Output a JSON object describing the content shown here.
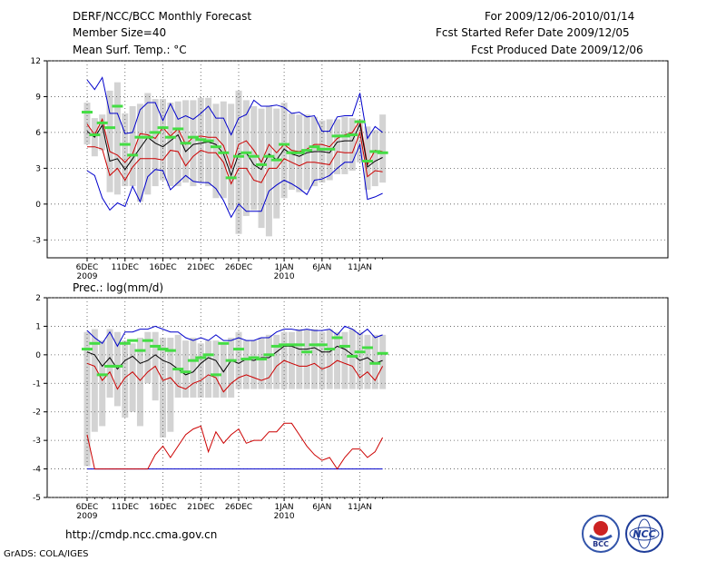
{
  "header": {
    "title": "DERF/NCC/BCC Monthly Forecast",
    "member_size": "Member Size=40",
    "variable": "Mean Surf. Temp.: °C",
    "period": "For 2009/12/06-2010/01/14",
    "started": "Fcst Started Refer Date 2009/12/05",
    "produced": "Fcst Produced Date 2009/12/06"
  },
  "footer": {
    "url": "http://cmdp.ncc.cma.gov.cn",
    "credit": "GrADS: COLA/IGES",
    "logo_left": "BCC",
    "logo_right": "NCC"
  },
  "colors": {
    "box": "#d3d3d3",
    "obs": "#44dd44",
    "ens_mean": "#000000",
    "quartile": "#cc0000",
    "envelope": "#0000cc",
    "grid": "#555555"
  },
  "chart_data": [
    {
      "type": "line",
      "title": "Mean Surf. Temp.: °C",
      "ylim": [
        -4.5,
        12
      ],
      "yticks": [
        12,
        9,
        6,
        3,
        0,
        -3
      ],
      "xticks": [
        {
          "day": 0,
          "label": "6DEC",
          "label2": "2009"
        },
        {
          "day": 5,
          "label": "11DEC"
        },
        {
          "day": 10,
          "label": "16DEC"
        },
        {
          "day": 15,
          "label": "21DEC"
        },
        {
          "day": 20,
          "label": "26DEC"
        },
        {
          "day": 26,
          "label": "1JAN",
          "label2": "2010"
        },
        {
          "day": 31,
          "label": "6JAN"
        },
        {
          "day": 36,
          "label": "11JAN"
        }
      ],
      "x": [
        0,
        1,
        2,
        3,
        4,
        5,
        6,
        7,
        8,
        9,
        10,
        11,
        12,
        13,
        14,
        15,
        16,
        17,
        18,
        19,
        20,
        21,
        22,
        23,
        24,
        25,
        26,
        27,
        28,
        29,
        30,
        31,
        32,
        33,
        34,
        35,
        36,
        37,
        38,
        39
      ],
      "series": [
        {
          "name": "box_max",
          "values": [
            8.5,
            7.2,
            7.5,
            9.5,
            10.2,
            7.6,
            8.2,
            8.4,
            9.3,
            8.8,
            8.8,
            8.5,
            8.6,
            8.7,
            8.7,
            8.9,
            8.9,
            8.4,
            8.6,
            8.4,
            9.5,
            8.7,
            8.2,
            8.0,
            8.2,
            8.0,
            8.5,
            7.6,
            7.5,
            7.5,
            7.3,
            7.0,
            7.1,
            7.1,
            7.3,
            7.2,
            7.1,
            6.5,
            6.2,
            7.5
          ]
        },
        {
          "name": "box_min",
          "values": [
            5.0,
            4.0,
            4.5,
            1.0,
            0.8,
            1.5,
            1.5,
            0.2,
            0.8,
            1.5,
            2.0,
            1.5,
            1.5,
            1.8,
            1.5,
            1.8,
            1.5,
            0.5,
            0.5,
            -0.5,
            -2.5,
            -1.0,
            -0.5,
            -2.0,
            -2.7,
            -1.2,
            0.5,
            1.2,
            1.0,
            1.2,
            1.5,
            1.8,
            2.0,
            2.5,
            2.5,
            2.8,
            3.5,
            1.2,
            1.5,
            1.8
          ]
        },
        {
          "name": "upper_envelope",
          "values": [
            10.4,
            9.6,
            10.6,
            7.6,
            7.6,
            5.9,
            6.0,
            7.9,
            8.5,
            8.5,
            7.0,
            8.4,
            7.1,
            7.4,
            7.1,
            7.6,
            8.2,
            7.2,
            7.2,
            5.8,
            7.2,
            7.5,
            8.7,
            8.2,
            8.2,
            8.3,
            8.1,
            7.6,
            7.7,
            7.3,
            7.4,
            6.1,
            6.1,
            7.3,
            7.4,
            7.4,
            9.3,
            5.5,
            6.5,
            6.0
          ]
        },
        {
          "name": "upper_quartile",
          "values": [
            6.7,
            5.8,
            7.1,
            4.4,
            4.1,
            3.5,
            4.2,
            5.9,
            5.8,
            5.5,
            6.4,
            5.7,
            6.3,
            5.0,
            5.6,
            5.7,
            5.6,
            5.6,
            4.9,
            3.0,
            5.0,
            5.3,
            4.5,
            3.5,
            5.0,
            4.3,
            5.0,
            4.5,
            4.4,
            4.6,
            5.0,
            5.0,
            4.8,
            5.5,
            5.8,
            6.0,
            7.0,
            3.3,
            4.5,
            4.4
          ]
        },
        {
          "name": "ensemble_mean",
          "values": [
            6.1,
            5.6,
            6.6,
            3.6,
            3.8,
            2.9,
            3.8,
            4.7,
            5.6,
            5.1,
            4.8,
            5.3,
            5.8,
            4.4,
            5.0,
            5.1,
            5.2,
            5.0,
            4.2,
            2.4,
            4.2,
            4.3,
            3.3,
            2.9,
            4.2,
            3.7,
            4.6,
            4.2,
            4.0,
            4.3,
            4.4,
            4.4,
            4.3,
            5.2,
            5.3,
            5.3,
            6.7,
            3.1,
            3.6,
            3.9
          ]
        },
        {
          "name": "lower_quartile",
          "values": [
            4.8,
            4.8,
            4.6,
            2.4,
            3.0,
            2.0,
            3.1,
            3.8,
            3.8,
            3.8,
            3.7,
            4.5,
            4.4,
            3.2,
            4.0,
            4.5,
            4.3,
            4.3,
            3.5,
            1.7,
            3.0,
            3.0,
            2.0,
            1.8,
            3.0,
            3.0,
            3.8,
            3.5,
            3.2,
            3.5,
            3.5,
            3.4,
            3.3,
            4.4,
            4.3,
            4.3,
            6.0,
            2.3,
            2.8,
            2.7
          ]
        },
        {
          "name": "lower_envelope",
          "values": [
            2.8,
            2.4,
            0.5,
            -0.5,
            0.1,
            -0.2,
            1.5,
            0.2,
            2.3,
            2.9,
            2.8,
            1.2,
            1.8,
            2.4,
            1.9,
            1.8,
            1.8,
            1.3,
            0.3,
            -1.1,
            0.0,
            -0.6,
            -0.6,
            -0.6,
            1.1,
            1.6,
            2.0,
            1.7,
            1.3,
            0.8,
            2.0,
            2.1,
            2.4,
            3.0,
            3.5,
            3.5,
            5.0,
            0.4,
            0.6,
            0.9
          ]
        },
        {
          "name": "observed",
          "values": [
            7.7,
            5.8,
            6.8,
            6.4,
            8.2,
            5.0,
            4.1,
            5.6,
            5.6,
            6.0,
            6.4,
            5.6,
            6.3,
            5.1,
            5.6,
            5.4,
            5.3,
            4.8,
            4.3,
            2.2,
            4.0,
            4.3,
            4.0,
            3.3,
            4.0,
            3.7,
            5.0,
            4.3,
            4.3,
            4.5,
            4.8,
            4.6,
            4.6,
            5.7,
            5.7,
            5.8,
            6.9,
            3.6,
            4.4,
            4.3
          ]
        }
      ]
    },
    {
      "type": "line",
      "title": "Prec.: log(mm/d)",
      "ylim": [
        -5,
        2
      ],
      "yticks": [
        2,
        1,
        0,
        -1,
        -2,
        -3,
        -4,
        -5
      ],
      "xticks": [
        {
          "day": 0,
          "label": "6DEC",
          "label2": "2009"
        },
        {
          "day": 5,
          "label": "11DEC"
        },
        {
          "day": 10,
          "label": "16DEC"
        },
        {
          "day": 15,
          "label": "21DEC"
        },
        {
          "day": 20,
          "label": "26DEC"
        },
        {
          "day": 26,
          "label": "1JAN",
          "label2": "2010"
        },
        {
          "day": 31,
          "label": "6JAN"
        },
        {
          "day": 36,
          "label": "11JAN"
        }
      ],
      "x": [
        0,
        1,
        2,
        3,
        4,
        5,
        6,
        7,
        8,
        9,
        10,
        11,
        12,
        13,
        14,
        15,
        16,
        17,
        18,
        19,
        20,
        21,
        22,
        23,
        24,
        25,
        26,
        27,
        28,
        29,
        30,
        31,
        32,
        33,
        34,
        35,
        36,
        37,
        38,
        39
      ],
      "series": [
        {
          "name": "box_max",
          "values": [
            0.8,
            0.9,
            0.5,
            0.9,
            0.8,
            0.5,
            0.4,
            0.6,
            0.8,
            0.8,
            0.6,
            0.6,
            0.7,
            0.5,
            0.6,
            0.4,
            0.5,
            0.5,
            0.4,
            0.6,
            0.8,
            0.5,
            0.5,
            0.6,
            0.7,
            0.7,
            0.8,
            0.8,
            0.9,
            0.9,
            0.9,
            0.8,
            0.9,
            0.8,
            0.8,
            0.9,
            0.8,
            0.7,
            0.7,
            0.7
          ]
        },
        {
          "name": "box_min",
          "values": [
            -3.9,
            -2.7,
            -2.5,
            -1.5,
            -1.8,
            -2.2,
            -2.0,
            -2.5,
            -1.0,
            -1.6,
            -2.9,
            -2.7,
            -1.5,
            -1.5,
            -1.5,
            -1.5,
            -1.5,
            -1.5,
            -1.5,
            -1.5,
            -1.2,
            -1.2,
            -1.2,
            -1.2,
            -1.2,
            -1.2,
            -1.2,
            -1.2,
            -1.2,
            -1.2,
            -1.2,
            -1.2,
            -1.2,
            -1.2,
            -1.2,
            -1.2,
            -1.2,
            -1.2,
            -1.2,
            -1.2
          ]
        },
        {
          "name": "upper_envelope",
          "values": [
            0.85,
            0.6,
            0.4,
            0.8,
            0.3,
            0.8,
            0.8,
            0.9,
            0.9,
            1.0,
            0.9,
            0.8,
            0.8,
            0.6,
            0.5,
            0.6,
            0.5,
            0.7,
            0.5,
            0.5,
            0.6,
            0.5,
            0.5,
            0.6,
            0.6,
            0.8,
            0.9,
            0.9,
            0.85,
            0.9,
            0.85,
            0.85,
            0.9,
            0.7,
            1.0,
            0.9,
            0.7,
            0.9,
            0.6,
            0.7
          ]
        },
        {
          "name": "ensemble_mean",
          "values": [
            0.1,
            0.0,
            -0.4,
            -0.1,
            -0.5,
            -0.2,
            -0.05,
            -0.3,
            -0.2,
            0.0,
            -0.2,
            -0.3,
            -0.5,
            -0.7,
            -0.6,
            -0.3,
            -0.1,
            -0.2,
            -0.6,
            -0.2,
            -0.3,
            -0.15,
            -0.2,
            -0.1,
            -0.1,
            0.1,
            0.3,
            0.3,
            0.2,
            0.2,
            0.25,
            0.1,
            0.1,
            0.3,
            0.2,
            0.0,
            -0.2,
            -0.1,
            -0.3,
            -0.2
          ]
        },
        {
          "name": "upper_red",
          "values": [
            -0.3,
            -0.4,
            -0.9,
            -0.6,
            -1.2,
            -0.8,
            -0.6,
            -0.9,
            -0.6,
            -0.4,
            -0.9,
            -0.8,
            -1.1,
            -1.2,
            -1.0,
            -0.9,
            -0.7,
            -0.8,
            -1.3,
            -1.0,
            -0.8,
            -0.7,
            -0.8,
            -0.9,
            -0.8,
            -0.4,
            -0.2,
            -0.3,
            -0.4,
            -0.4,
            -0.3,
            -0.5,
            -0.4,
            -0.2,
            -0.3,
            -0.4,
            -0.8,
            -0.6,
            -0.9,
            -0.4
          ]
        },
        {
          "name": "lower_red",
          "values": [
            -2.8,
            -4.0,
            -4.0,
            -4.0,
            -4.0,
            -4.0,
            -4.0,
            -4.0,
            -4.0,
            -3.5,
            -3.2,
            -3.6,
            -3.2,
            -2.8,
            -2.6,
            -2.5,
            -3.4,
            -2.7,
            -3.1,
            -2.8,
            -2.6,
            -3.1,
            -3.0,
            -3.0,
            -2.7,
            -2.7,
            -2.4,
            -2.4,
            -2.8,
            -3.2,
            -3.5,
            -3.7,
            -3.6,
            -4.0,
            -3.6,
            -3.3,
            -3.3,
            -3.6,
            -3.4,
            -2.9
          ]
        },
        {
          "name": "lower_envelope",
          "values": [
            -4.0,
            -4.0,
            -4.0,
            -4.0,
            -4.0,
            -4.0,
            -4.0,
            -4.0,
            -4.0,
            -4.0,
            -4.0,
            -4.0,
            -4.0,
            -4.0,
            -4.0,
            -4.0,
            -4.0,
            -4.0,
            -4.0,
            -4.0,
            -4.0,
            -4.0,
            -4.0,
            -4.0,
            -4.0,
            -4.0,
            -4.0,
            -4.0,
            -4.0,
            -4.0,
            -4.0,
            -4.0,
            -4.0,
            -4.0,
            -4.0,
            -4.0,
            -4.0,
            -4.0,
            -4.0,
            -4.0
          ]
        },
        {
          "name": "observed",
          "values": [
            0.2,
            0.4,
            -0.7,
            -0.4,
            -0.4,
            0.4,
            0.5,
            0.15,
            0.5,
            0.3,
            0.2,
            0.15,
            -0.5,
            -0.6,
            -0.2,
            -0.1,
            0.0,
            -0.7,
            0.4,
            -0.2,
            0.2,
            -0.15,
            -0.1,
            -0.15,
            0.0,
            0.3,
            0.35,
            0.35,
            0.35,
            0.1,
            0.35,
            0.35,
            0.2,
            0.6,
            0.3,
            -0.05,
            0.1,
            0.25,
            -0.3,
            0.05
          ]
        }
      ]
    }
  ]
}
